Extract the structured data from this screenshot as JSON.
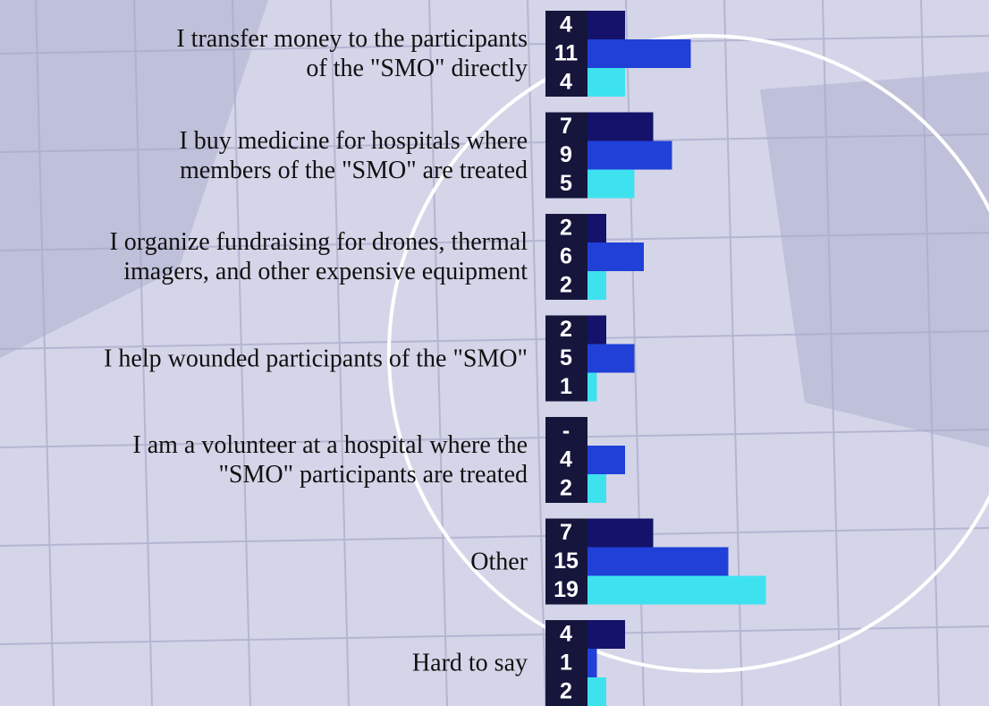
{
  "chart_data": {
    "type": "hbar",
    "categories": [
      "I transfer money to the participants\nof the \"SMO\" directly",
      "I buy medicine for hospitals where\nmembers of the \"SMO\" are treated",
      "I organize fundraising for drones, thermal\nimagers, and other expensive equipment",
      "I help wounded participants of the \"SMO\"",
      "I am a volunteer at a hospital where the\n\"SMO\" participants are treated",
      "Other",
      "Hard to say"
    ],
    "series": [
      {
        "color": "#14126a",
        "values": [
          4,
          7,
          2,
          2,
          null,
          7,
          4
        ],
        "value_labels": [
          "4",
          "7",
          "2",
          "2",
          "-",
          "7",
          "4"
        ]
      },
      {
        "color": "#2040d8",
        "values": [
          11,
          9,
          6,
          5,
          4,
          15,
          1
        ]
      },
      {
        "color": "#3ee2ef",
        "values": [
          4,
          5,
          2,
          1,
          2,
          19,
          2
        ]
      }
    ]
  }
}
